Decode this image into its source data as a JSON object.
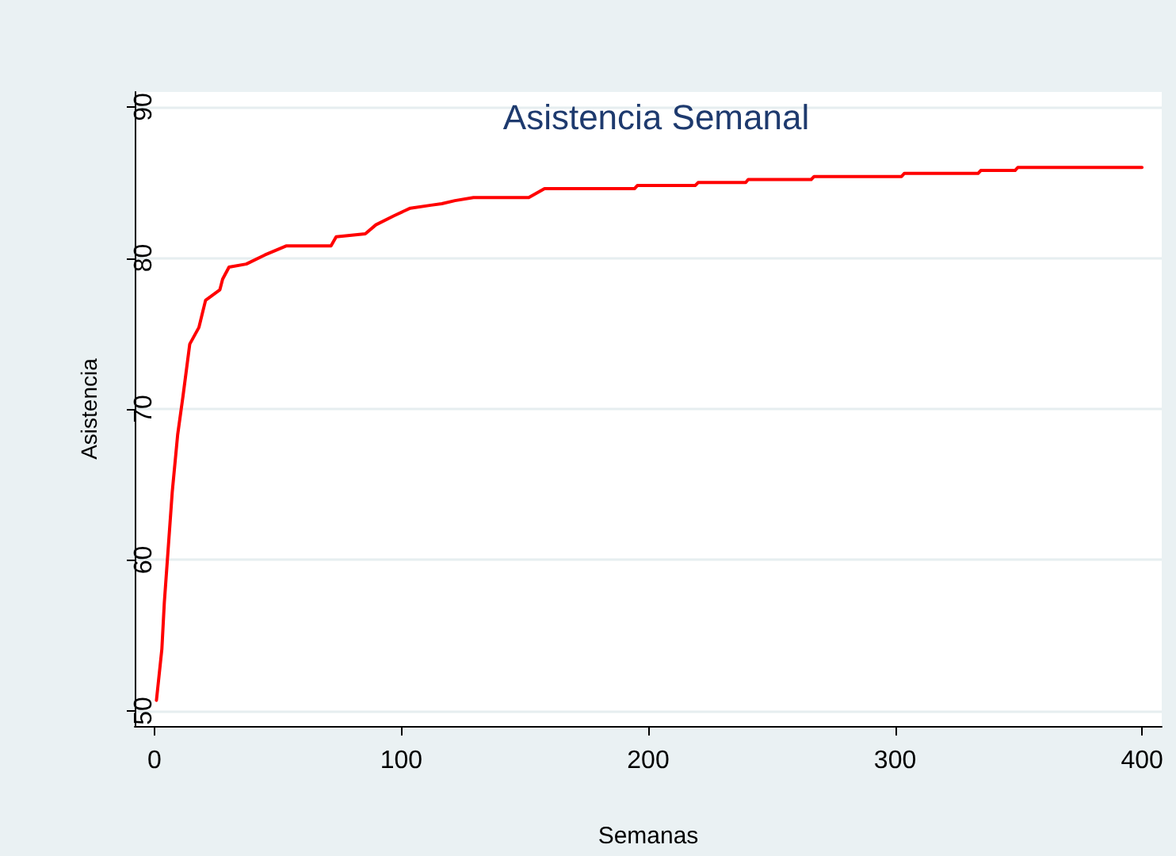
{
  "chart_data": {
    "type": "step",
    "title": "Asistencia Semanal",
    "xlabel": "Semanas",
    "ylabel": "Asistencia",
    "xlim": [
      -8,
      408
    ],
    "xticks": [
      0,
      100,
      200,
      300,
      400
    ],
    "ylim": [
      49,
      91
    ],
    "yticks": [
      50,
      60,
      70,
      80,
      90
    ],
    "grid": "y",
    "marker": "none",
    "line_style": "solid",
    "series": [
      {
        "color": "#ff0000",
        "x": [
          0.8,
          3,
          4,
          7.2,
          9.4,
          11.6,
          14.3,
          18,
          20.7,
          26.5,
          27.6,
          30.2,
          37.2,
          44.7,
          53.3,
          71.5,
          73.6,
          85.4,
          89.7,
          97,
          103.6,
          112,
          116.4,
          121.7,
          129.2,
          151.6,
          158,
          194.5,
          195.6,
          219,
          220.2,
          239.5,
          240.5,
          266,
          267.2,
          302.6,
          303.7,
          333.6,
          334.7,
          348.6,
          349.7,
          400
        ],
        "values": [
          50.7,
          54.1,
          57.2,
          64.5,
          68.3,
          70.9,
          74.3,
          75.4,
          77.2,
          77.9,
          78.6,
          79.4,
          79.6,
          80.2,
          80.8,
          80.8,
          81.4,
          81.6,
          82.2,
          82.8,
          83.3,
          83.5,
          83.6,
          83.8,
          84.0,
          84.0,
          84.6,
          84.6,
          84.8,
          84.8,
          85.0,
          85.0,
          85.2,
          85.2,
          85.4,
          85.4,
          85.6,
          85.6,
          85.8,
          85.8,
          86.0,
          86.0
        ]
      }
    ]
  }
}
